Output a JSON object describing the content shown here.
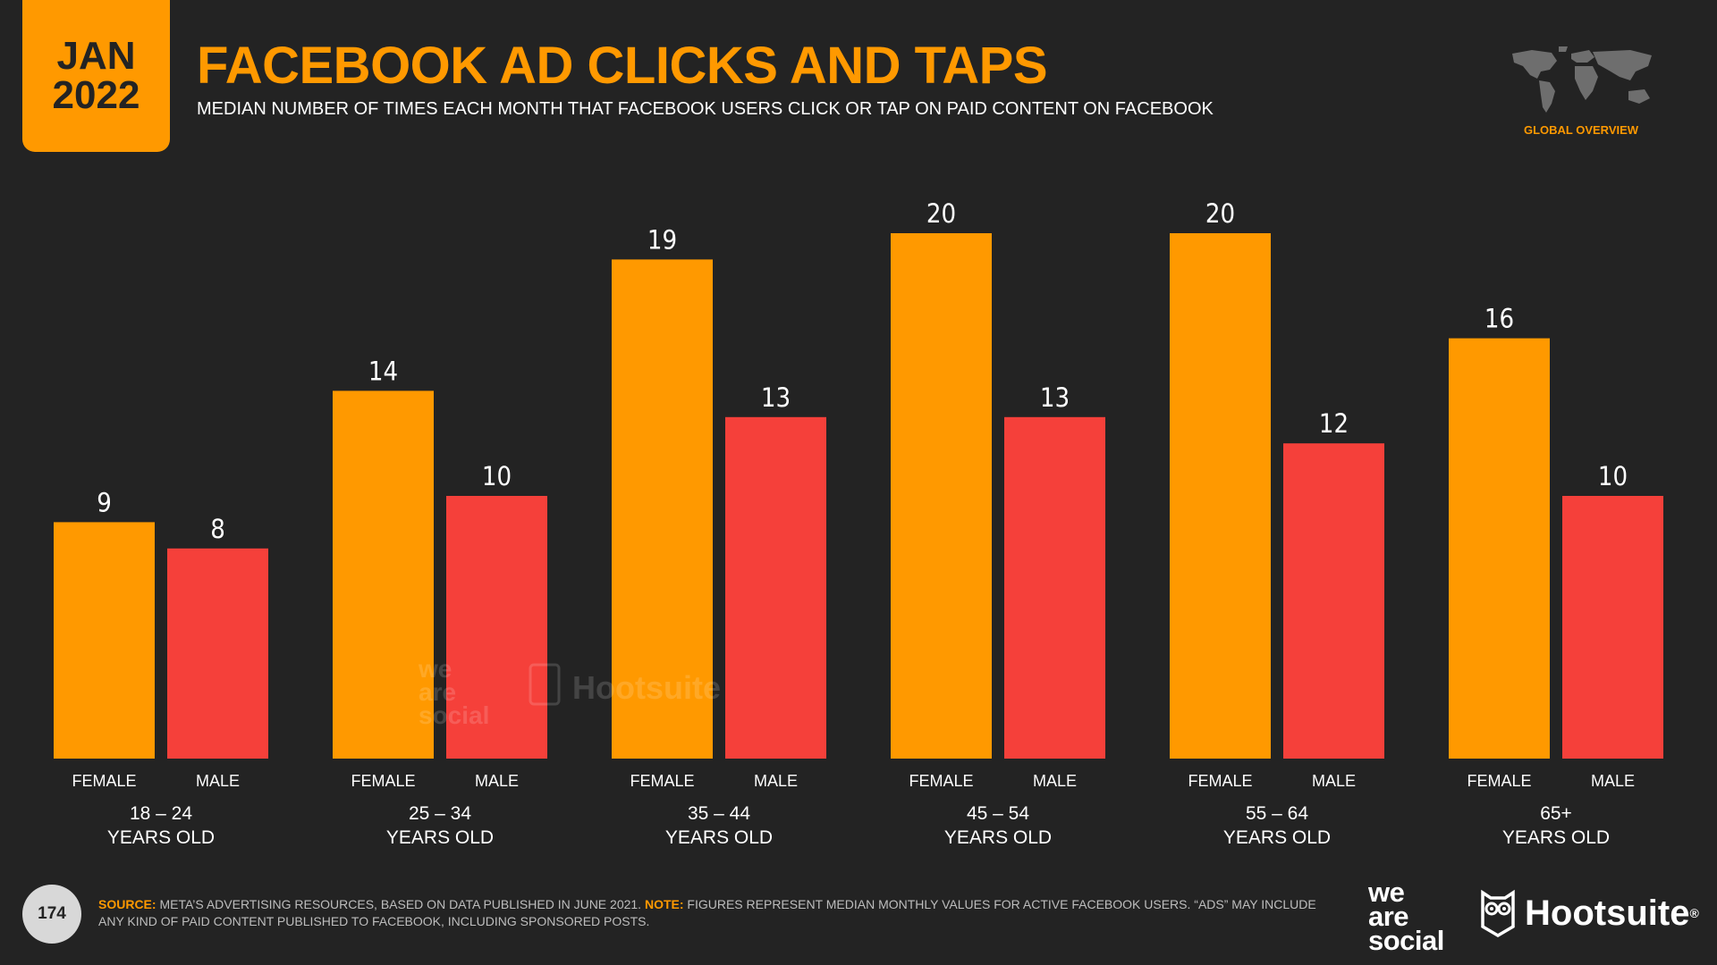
{
  "header": {
    "date_month": "JAN",
    "date_year": "2022",
    "title": "FACEBOOK AD CLICKS AND TAPS",
    "subtitle": "MEDIAN NUMBER OF TIMES EACH MONTH THAT FACEBOOK USERS CLICK OR TAP ON PAID CONTENT ON FACEBOOK",
    "region_label": "GLOBAL OVERVIEW"
  },
  "chart_data": {
    "type": "bar",
    "title": "FACEBOOK AD CLICKS AND TAPS",
    "subtitle": "MEDIAN NUMBER OF TIMES EACH MONTH THAT FACEBOOK USERS CLICK OR TAP ON PAID CONTENT ON FACEBOOK",
    "categories": [
      {
        "line1": "18 – 24",
        "line2": "YEARS OLD"
      },
      {
        "line1": "25 – 34",
        "line2": "YEARS OLD"
      },
      {
        "line1": "35 – 44",
        "line2": "YEARS OLD"
      },
      {
        "line1": "45 – 54",
        "line2": "YEARS OLD"
      },
      {
        "line1": "55 – 64",
        "line2": "YEARS OLD"
      },
      {
        "line1": "65+",
        "line2": "YEARS OLD"
      }
    ],
    "series": [
      {
        "name": "FEMALE",
        "color": "#ff9900",
        "values": [
          9,
          14,
          19,
          20,
          20,
          16
        ]
      },
      {
        "name": "MALE",
        "color": "#f5403a",
        "values": [
          8,
          10,
          13,
          13,
          12,
          10
        ]
      }
    ],
    "ylim": [
      0,
      20
    ],
    "grid": false,
    "data_labels": true
  },
  "footer": {
    "page_number": "174",
    "source_key": "SOURCE:",
    "source_text": "META’S ADVERTISING RESOURCES, BASED ON DATA PUBLISHED IN JUNE 2021.",
    "note_key": "NOTE:",
    "note_text": "FIGURES REPRESENT MEDIAN MONTHLY VALUES FOR ACTIVE FACEBOOK USERS. “ADS” MAY INCLUDE ANY KIND OF PAID CONTENT PUBLISHED TO FACEBOOK, INCLUDING SPONSORED POSTS.",
    "logo_we": "we",
    "logo_are": "are",
    "logo_social": "social",
    "logo_hootsuite": "Hootsuite",
    "logo_reg": "®"
  },
  "colors": {
    "accent": "#ff9900",
    "female": "#ff9900",
    "male": "#f5403a",
    "background": "#232323"
  },
  "icons": {
    "region": "world-map-icon",
    "hootsuite": "owl-icon"
  }
}
